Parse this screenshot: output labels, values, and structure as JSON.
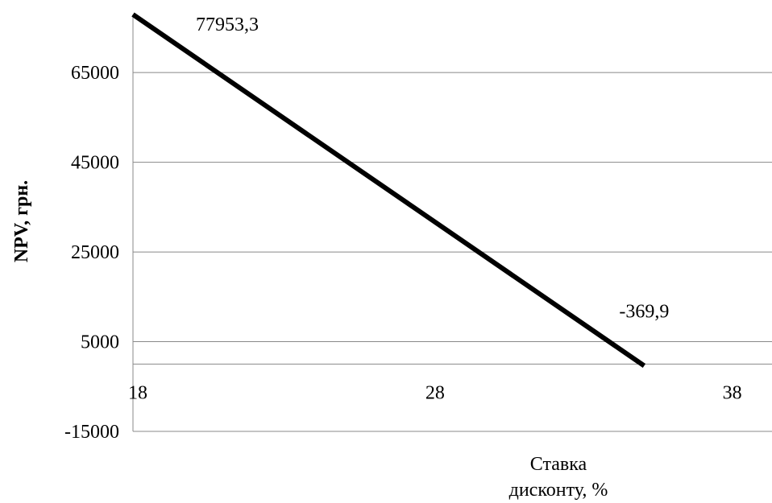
{
  "chart_data": {
    "type": "line",
    "title": "",
    "xlabel_lines": [
      "Ставка",
      "дисконту, %"
    ],
    "ylabel": "NPV, грн.",
    "xlim": [
      18,
      39.5
    ],
    "ylim": [
      -15000,
      77953.3
    ],
    "x_ticks": [
      {
        "value": 18,
        "label": "18"
      },
      {
        "value": 28,
        "label": "28"
      },
      {
        "value": 38,
        "label": "38"
      }
    ],
    "y_ticks": [
      {
        "value": 65000,
        "label": "65000"
      },
      {
        "value": 45000,
        "label": "45000"
      },
      {
        "value": 25000,
        "label": "25000"
      },
      {
        "value": 5000,
        "label": "5000"
      },
      {
        "value": -15000,
        "label": "-15000"
      }
    ],
    "gridlines": "horizontal",
    "series": [
      {
        "color": "#000000",
        "points": [
          {
            "x": 18,
            "y": 77953.3
          },
          {
            "x": 35.2,
            "y": -369.9
          }
        ]
      }
    ],
    "data_labels": [
      {
        "x": 18,
        "y": 77953.3,
        "text": "77953,3"
      },
      {
        "x": 35.2,
        "y": -369.9,
        "text": "-369,9"
      }
    ]
  }
}
